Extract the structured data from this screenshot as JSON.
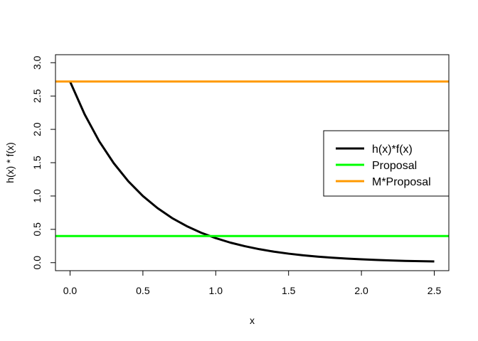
{
  "chart_data": {
    "type": "line",
    "xlabel": "x",
    "ylabel": "h(x) * f(x)",
    "xlim": [
      0,
      2.5
    ],
    "ylim": [
      0,
      3.0
    ],
    "x_ticks": [
      "0.0",
      "0.5",
      "1.0",
      "1.5",
      "2.0",
      "2.5"
    ],
    "y_ticks": [
      "0.0",
      "0.5",
      "1.0",
      "1.5",
      "2.0",
      "2.5",
      "3.0"
    ],
    "grid": false,
    "legend_position": "right",
    "series": [
      {
        "name": "h(x)*f(x)",
        "color": "#000000",
        "x": [
          0.0,
          0.1,
          0.2,
          0.3,
          0.4,
          0.5,
          0.6,
          0.7,
          0.8,
          0.9,
          1.0,
          1.1,
          1.2,
          1.3,
          1.4,
          1.5,
          1.6,
          1.7,
          1.8,
          1.9,
          2.0,
          2.1,
          2.2,
          2.3,
          2.4,
          2.5
        ],
        "y": [
          2.718,
          2.226,
          1.822,
          1.492,
          1.221,
          1.0,
          0.819,
          0.67,
          0.549,
          0.449,
          0.368,
          0.301,
          0.247,
          0.202,
          0.165,
          0.135,
          0.111,
          0.091,
          0.074,
          0.061,
          0.05,
          0.041,
          0.033,
          0.027,
          0.022,
          0.018
        ]
      },
      {
        "name": "Proposal",
        "color": "#00ff00",
        "x": [
          -0.1,
          2.6
        ],
        "y": [
          0.4,
          0.4
        ]
      },
      {
        "name": "M*Proposal",
        "color": "#ff9900",
        "x": [
          -0.1,
          2.6
        ],
        "y": [
          2.718,
          2.718
        ]
      }
    ]
  }
}
